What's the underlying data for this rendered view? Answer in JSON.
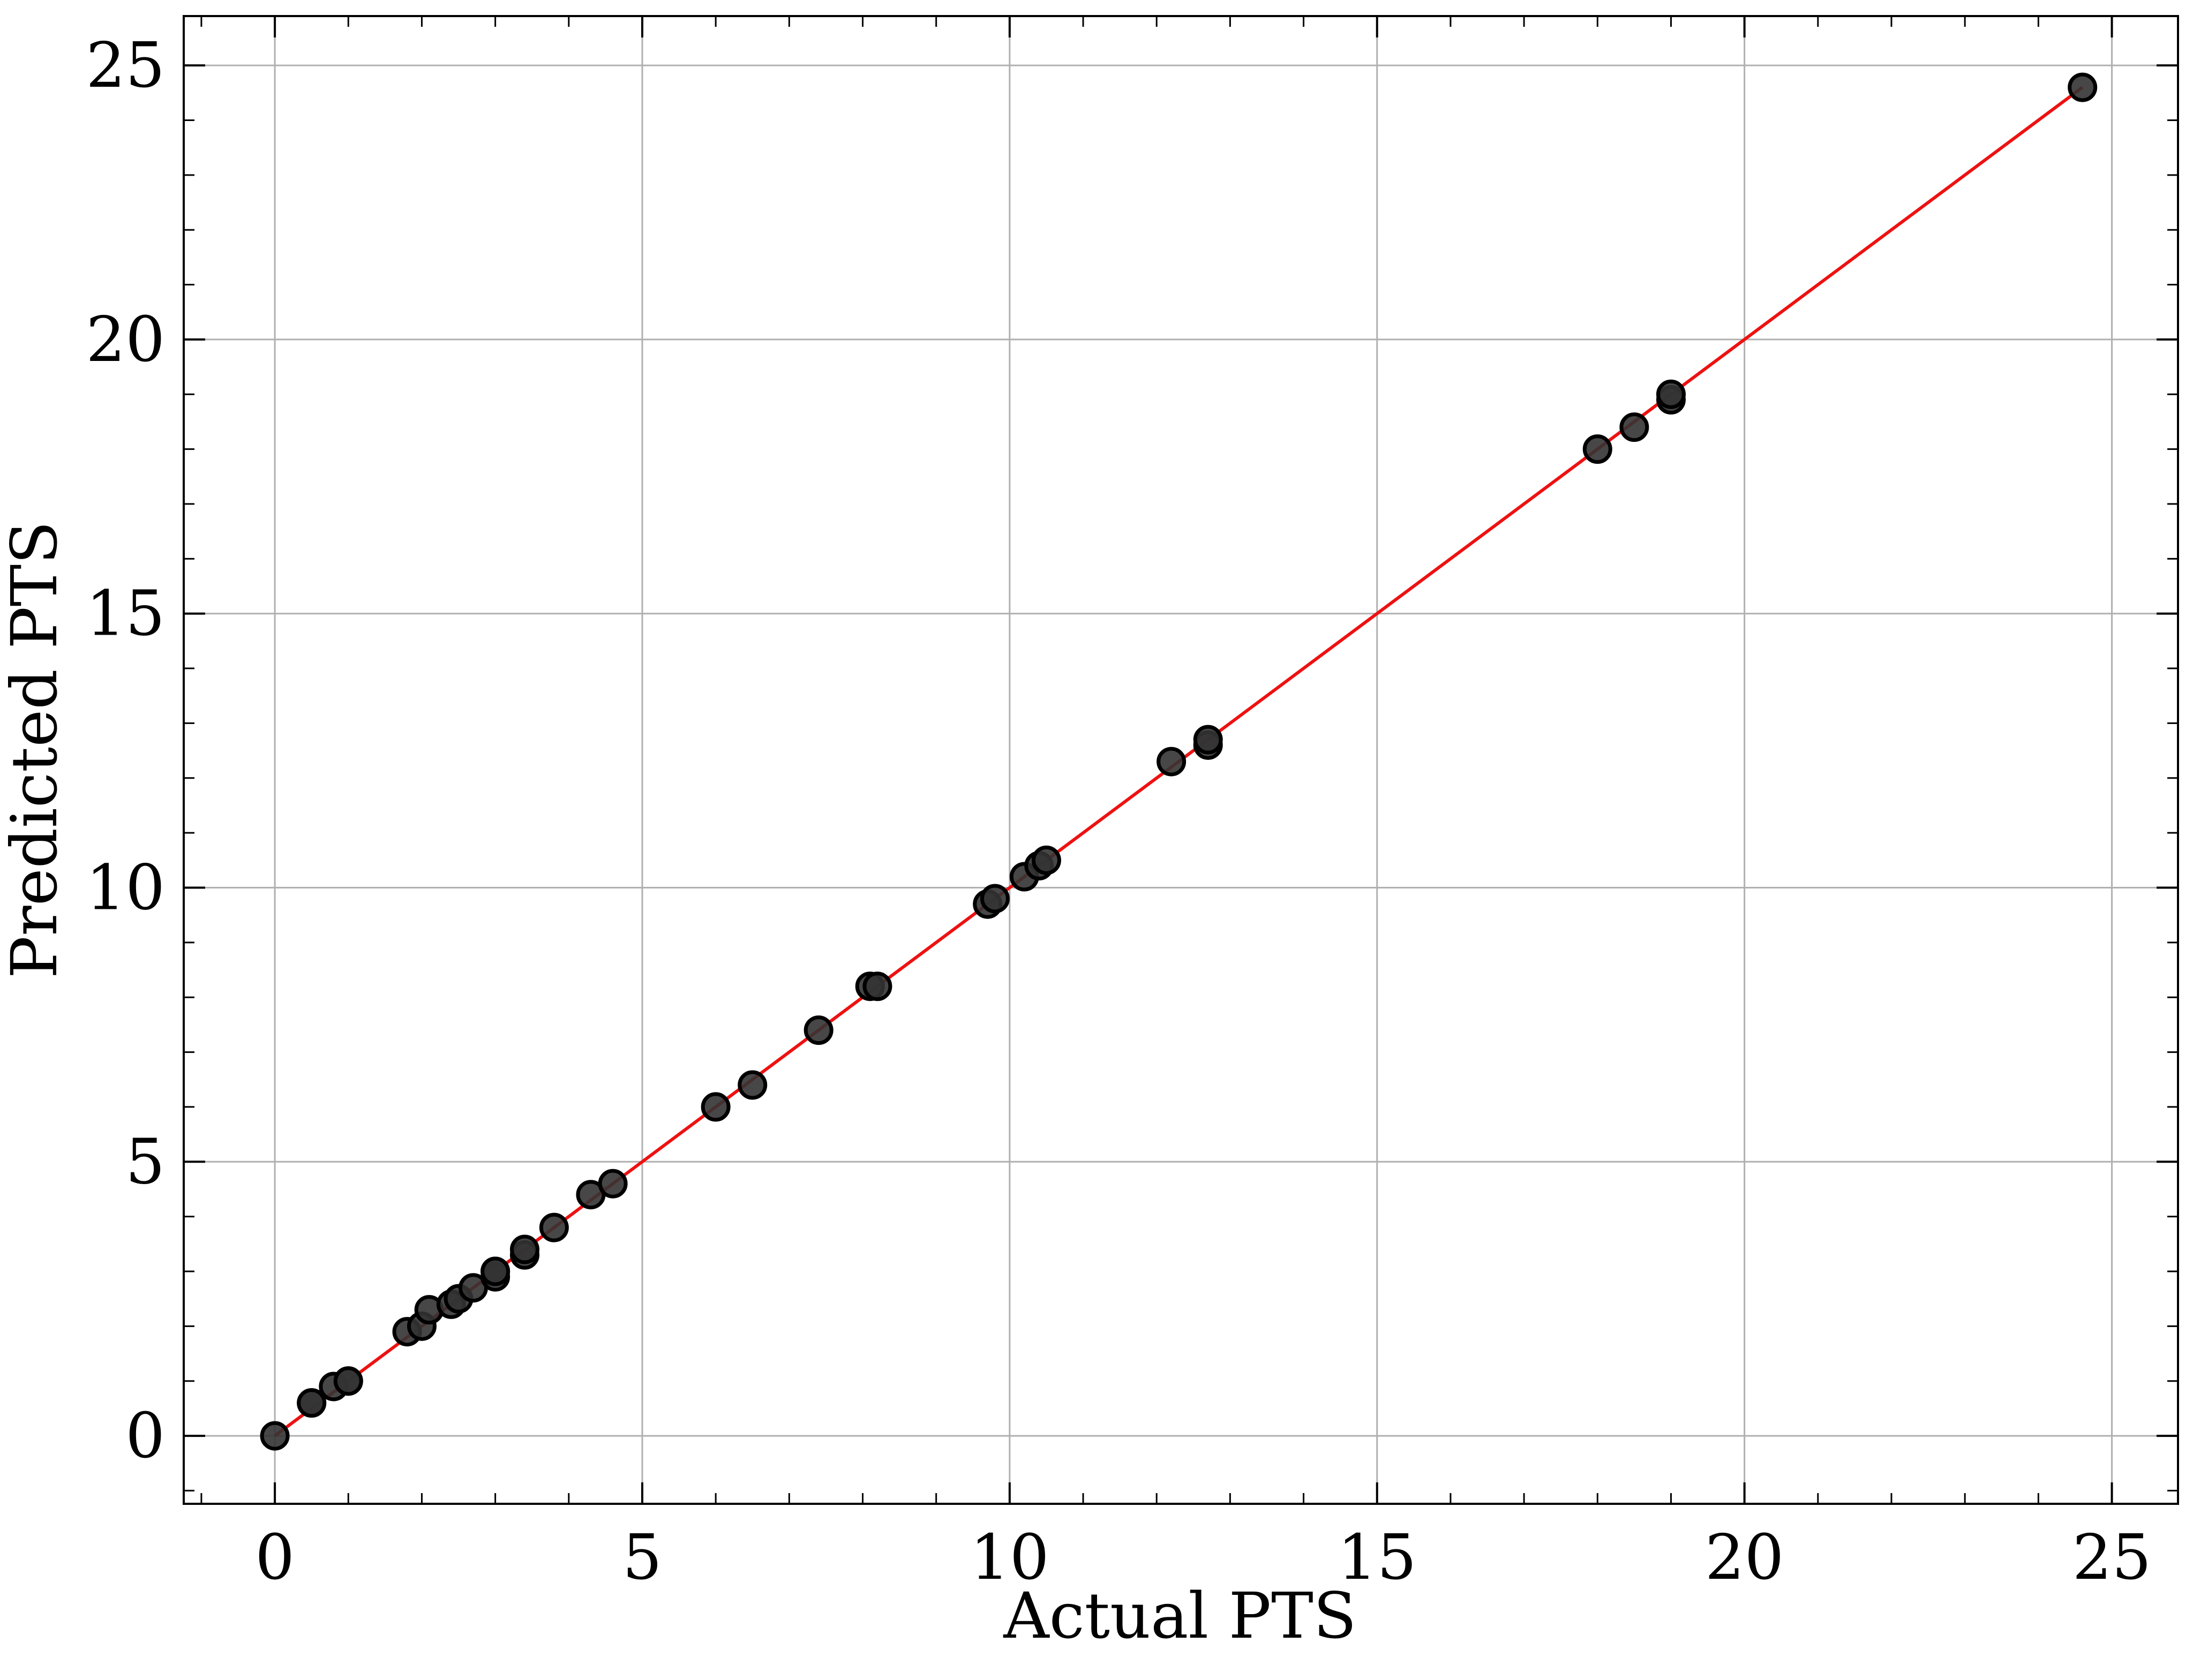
{
  "chart_data": {
    "type": "scatter",
    "title": "",
    "xlabel": "Actual PTS",
    "ylabel": "Predicted PTS",
    "xlim": [
      -1.24,
      25.9
    ],
    "ylim": [
      -1.24,
      25.9
    ],
    "xticks": [
      0,
      5,
      10,
      15,
      20,
      25
    ],
    "yticks": [
      0,
      5,
      10,
      15,
      20,
      25
    ],
    "xtick_labels": [
      "0",
      "5",
      "10",
      "15",
      "20",
      "25"
    ],
    "ytick_labels": [
      "0",
      "5",
      "10",
      "15",
      "20",
      "25"
    ],
    "grid": true,
    "legend": "none",
    "colors": {
      "points": "#333333",
      "point_edge": "#000000",
      "reference_line": "#ee1111",
      "grid": "#b0b0b0",
      "axes": "#000000"
    },
    "series": [
      {
        "x": [
          0,
          0.5,
          0.5,
          0.8,
          1.0,
          1.0,
          1.8,
          2.0,
          2.1,
          2.4,
          2.5,
          2.7,
          3.0,
          3.0,
          3.0,
          3.4,
          3.4,
          3.8,
          4.3,
          4.6,
          6.0,
          6.5,
          7.4,
          8.1,
          8.2,
          9.7,
          9.8,
          10.2,
          10.4,
          10.5,
          12.2,
          12.7,
          12.7,
          18.0,
          18.5,
          19.0,
          19.0,
          24.6
        ],
        "y": [
          0,
          0.6,
          0.6,
          0.9,
          1.0,
          1.0,
          1.9,
          2.0,
          2.3,
          2.4,
          2.5,
          2.7,
          2.9,
          3.0,
          3.0,
          3.3,
          3.4,
          3.8,
          4.4,
          4.6,
          6.0,
          6.4,
          7.4,
          8.2,
          8.2,
          9.7,
          9.8,
          10.2,
          10.4,
          10.5,
          12.3,
          12.6,
          12.7,
          18.0,
          18.4,
          18.9,
          19.0,
          24.6
        ]
      }
    ],
    "reference_line": {
      "from": [
        0,
        0
      ],
      "to": [
        24.6,
        24.6
      ]
    }
  }
}
